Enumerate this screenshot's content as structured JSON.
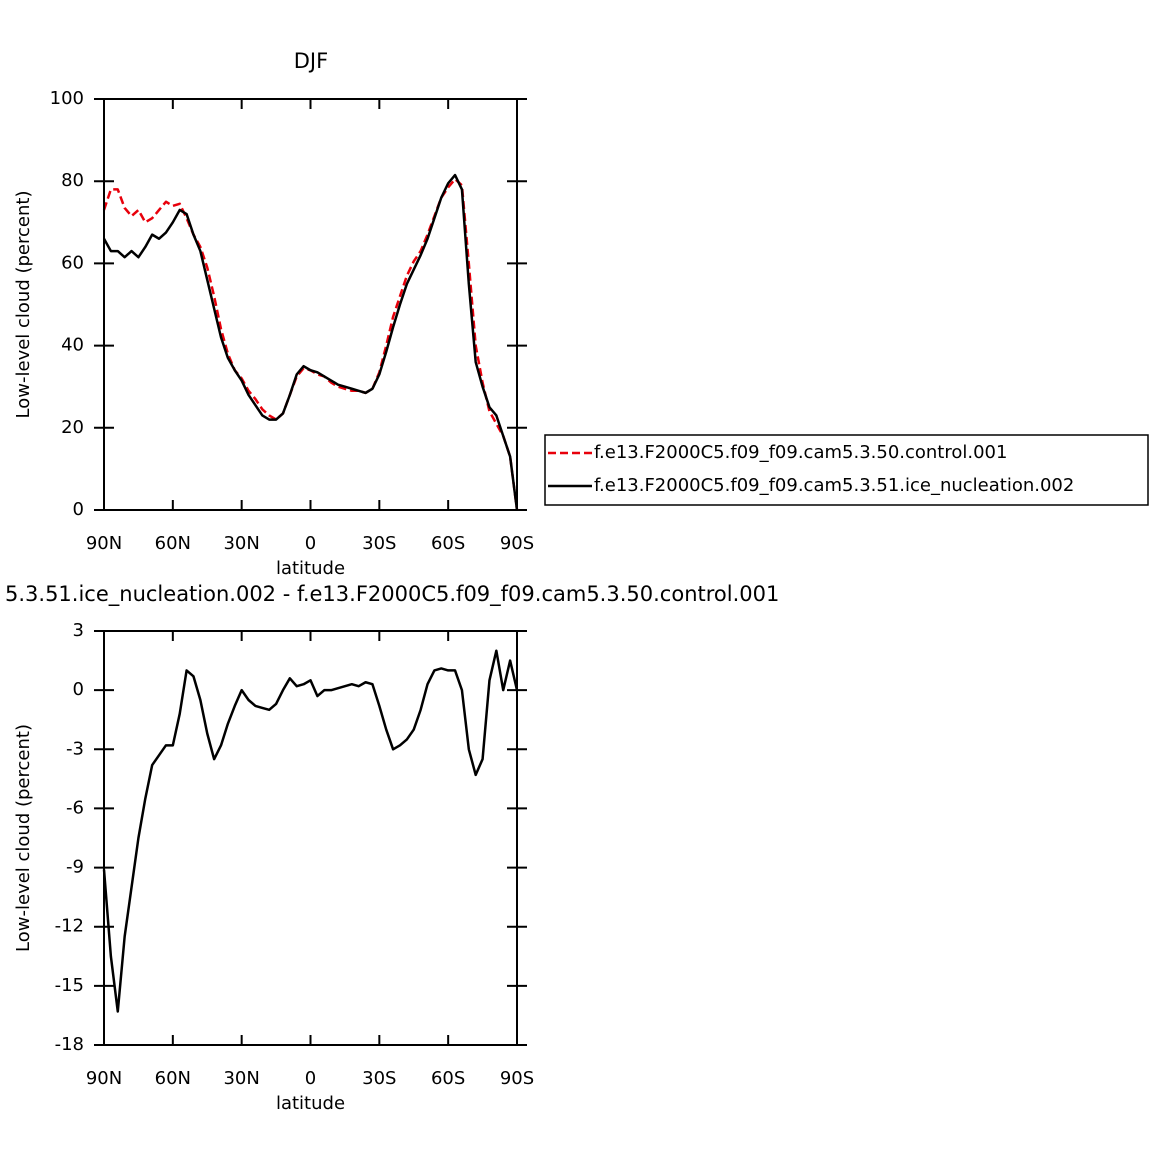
{
  "chart_data": [
    {
      "type": "line",
      "title": "DJF",
      "xlabel": "latitude",
      "ylabel": "Low-level cloud (percent)",
      "x": [
        90,
        87,
        84,
        81,
        78,
        75,
        72,
        69,
        66,
        63,
        60,
        57,
        54,
        51,
        48,
        45,
        42,
        39,
        36,
        33,
        30,
        27,
        24,
        21,
        18,
        15,
        12,
        9,
        6,
        3,
        0,
        -3,
        -6,
        -9,
        -12,
        -15,
        -18,
        -21,
        -24,
        -27,
        -30,
        -33,
        -36,
        -39,
        -42,
        -45,
        -48,
        -51,
        -54,
        -57,
        -60,
        -63,
        -66,
        -69,
        -72,
        -75,
        -78,
        -81,
        -84,
        -87,
        -90
      ],
      "series": [
        {
          "name": "f.e13.F2000C5.f09_f09.cam5.3.50.control.001",
          "color": "#e8000b",
          "dashed": true,
          "values": [
            73,
            78,
            78,
            73.5,
            71.5,
            73,
            70,
            71,
            73,
            75,
            74,
            74.5,
            71,
            67,
            64,
            59,
            52,
            44,
            38,
            34,
            32,
            29,
            27,
            24.5,
            23,
            22,
            23.5,
            28,
            32.5,
            34.5,
            34,
            33,
            32.5,
            31,
            30,
            29.5,
            29,
            29,
            28.5,
            29.5,
            33.5,
            40,
            47,
            52,
            57,
            60.5,
            63,
            67,
            71.5,
            76,
            78.5,
            80.5,
            79,
            60,
            40,
            31,
            24,
            21,
            18,
            13,
            0
          ]
        },
        {
          "name": "f.e13.F2000C5.f09_f09.cam5.3.51.ice_nucleation.002",
          "color": "#000000",
          "dashed": false,
          "values": [
            66,
            63,
            63,
            61.5,
            63,
            61.5,
            64,
            67,
            66,
            67.5,
            70,
            73,
            72,
            67,
            63,
            56,
            49,
            42,
            37,
            34,
            31.5,
            28,
            25.5,
            23,
            22,
            22,
            23.5,
            28,
            33,
            35,
            34,
            33.5,
            32.5,
            31.5,
            30.5,
            30,
            29.5,
            29,
            28.5,
            29.5,
            33,
            38.5,
            44.5,
            50,
            55,
            58.5,
            62,
            66,
            71,
            76,
            79.5,
            81.5,
            78,
            55,
            36,
            30,
            25,
            23,
            18,
            13,
            0
          ]
        }
      ],
      "xlim": [
        90,
        -90
      ],
      "xticks": [
        {
          "value": 90,
          "label": "90N"
        },
        {
          "value": 60,
          "label": "60N"
        },
        {
          "value": 30,
          "label": "30N"
        },
        0,
        {
          "value": -30,
          "label": "30S"
        },
        {
          "value": -60,
          "label": "60S"
        },
        {
          "value": -90,
          "label": "90S"
        }
      ],
      "ylim": [
        0,
        100
      ],
      "yticks": [
        0,
        20,
        40,
        60,
        80,
        100
      ],
      "legend": "right"
    },
    {
      "type": "line",
      "title": "5.3.51.ice_nucleation.002 - f.e13.F2000C5.f09_f09.cam5.3.50.control.001",
      "xlabel": "latitude",
      "ylabel": "Low-level cloud (percent)",
      "x": [
        90,
        87,
        84,
        81,
        78,
        75,
        72,
        69,
        66,
        63,
        60,
        57,
        54,
        51,
        48,
        45,
        42,
        39,
        36,
        33,
        30,
        27,
        24,
        21,
        18,
        15,
        12,
        9,
        6,
        3,
        0,
        -3,
        -6,
        -9,
        -12,
        -15,
        -18,
        -21,
        -24,
        -27,
        -30,
        -33,
        -36,
        -39,
        -42,
        -45,
        -48,
        -51,
        -54,
        -57,
        -60,
        -63,
        -66,
        -69,
        -72,
        -75,
        -78,
        -81,
        -84,
        -87,
        -90
      ],
      "series": [
        {
          "color": "#000000",
          "dashed": false,
          "values": [
            -9.1,
            -13.5,
            -16.3,
            -12.5,
            -10,
            -7.5,
            -5.5,
            -3.8,
            -3.3,
            -2.8,
            -2.8,
            -1.2,
            1,
            0.7,
            -0.5,
            -2.2,
            -3.5,
            -2.8,
            -1.7,
            -0.8,
            0,
            -0.5,
            -0.8,
            -0.9,
            -1,
            -0.7,
            0,
            0.6,
            0.2,
            0.3,
            0.5,
            -0.3,
            0,
            0,
            0.1,
            0.2,
            0.3,
            0.2,
            0.4,
            0.3,
            -0.8,
            -2,
            -3,
            -2.8,
            -2.5,
            -2,
            -1,
            0.3,
            1,
            1.1,
            1,
            1,
            0,
            -3,
            -4.3,
            -3.5,
            0.5,
            2,
            0,
            1.5,
            0
          ]
        }
      ],
      "xlim": [
        90,
        -90
      ],
      "xticks": [
        {
          "value": 90,
          "label": "90N"
        },
        {
          "value": 60,
          "label": "60N"
        },
        {
          "value": 30,
          "label": "30N"
        },
        0,
        {
          "value": -30,
          "label": "30S"
        },
        {
          "value": -60,
          "label": "60S"
        },
        {
          "value": -90,
          "label": "90S"
        }
      ],
      "ylim": [
        -18,
        3
      ],
      "yticks": [
        -18,
        -15,
        -12,
        -9,
        -6,
        -3,
        0,
        3
      ]
    }
  ]
}
